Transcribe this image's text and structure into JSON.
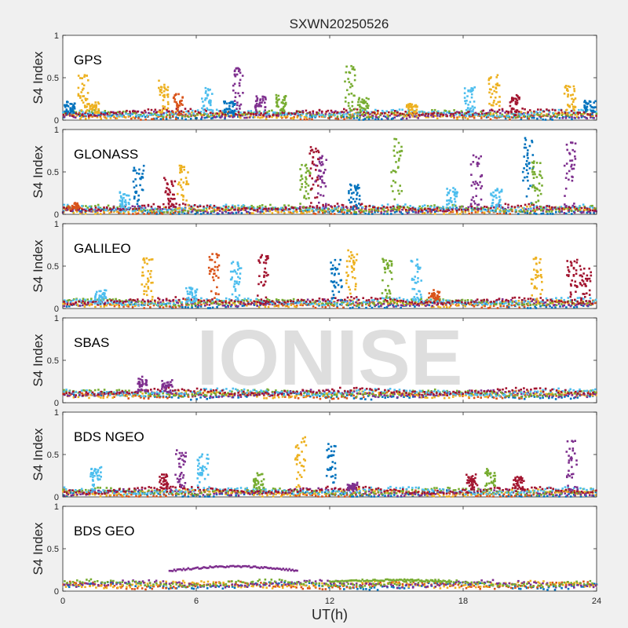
{
  "chart_data": {
    "type": "scatter",
    "title": "SXWN20250526",
    "xlabel": "UT(h)",
    "ylabel": "S4 Index",
    "xlim": [
      0,
      24
    ],
    "ylim": [
      0,
      1
    ],
    "xticks": [
      "0",
      "6",
      "12",
      "18",
      "24"
    ],
    "yticks": [
      "0",
      "0.5",
      "1"
    ],
    "watermark": "IONISE",
    "series_colors": [
      "#0072BD",
      "#D95319",
      "#EDB120",
      "#7E2F8E",
      "#77AC30",
      "#4DBEEE",
      "#A2142F"
    ],
    "panels": [
      {
        "name": "GPS",
        "baseline": 0.07,
        "clusters": [
          {
            "x": 0.3,
            "y": 0.2,
            "color": "#0072BD"
          },
          {
            "x": 0.9,
            "y": 0.55,
            "color": "#EDB120"
          },
          {
            "x": 1.4,
            "y": 0.2,
            "color": "#EDB120"
          },
          {
            "x": 4.5,
            "y": 0.45,
            "color": "#EDB120"
          },
          {
            "x": 5.2,
            "y": 0.3,
            "color": "#D95319"
          },
          {
            "x": 6.5,
            "y": 0.37,
            "color": "#4DBEEE"
          },
          {
            "x": 7.5,
            "y": 0.22,
            "color": "#0072BD"
          },
          {
            "x": 7.9,
            "y": 0.64,
            "color": "#7E2F8E"
          },
          {
            "x": 8.9,
            "y": 0.28,
            "color": "#7E2F8E"
          },
          {
            "x": 9.8,
            "y": 0.28,
            "color": "#77AC30"
          },
          {
            "x": 12.9,
            "y": 0.65,
            "color": "#77AC30"
          },
          {
            "x": 13.5,
            "y": 0.25,
            "color": "#77AC30"
          },
          {
            "x": 15.7,
            "y": 0.2,
            "color": "#EDB120"
          },
          {
            "x": 18.3,
            "y": 0.4,
            "color": "#4DBEEE"
          },
          {
            "x": 19.4,
            "y": 0.54,
            "color": "#EDB120"
          },
          {
            "x": 20.3,
            "y": 0.28,
            "color": "#A2142F"
          },
          {
            "x": 22.8,
            "y": 0.4,
            "color": "#EDB120"
          },
          {
            "x": 23.7,
            "y": 0.22,
            "color": "#0072BD"
          }
        ]
      },
      {
        "name": "GLONASS",
        "baseline": 0.06,
        "clusters": [
          {
            "x": 0.5,
            "y": 0.12,
            "color": "#D95319"
          },
          {
            "x": 2.8,
            "y": 0.25,
            "color": "#4DBEEE"
          },
          {
            "x": 3.4,
            "y": 0.6,
            "color": "#0072BD"
          },
          {
            "x": 4.8,
            "y": 0.42,
            "color": "#A2142F"
          },
          {
            "x": 5.4,
            "y": 0.6,
            "color": "#EDB120"
          },
          {
            "x": 10.9,
            "y": 0.62,
            "color": "#77AC30"
          },
          {
            "x": 11.3,
            "y": 0.8,
            "color": "#A2142F"
          },
          {
            "x": 11.6,
            "y": 0.7,
            "color": "#7E2F8E"
          },
          {
            "x": 13.1,
            "y": 0.35,
            "color": "#0072BD"
          },
          {
            "x": 15.0,
            "y": 0.88,
            "color": "#77AC30"
          },
          {
            "x": 17.5,
            "y": 0.3,
            "color": "#4DBEEE"
          },
          {
            "x": 18.6,
            "y": 0.73,
            "color": "#7E2F8E"
          },
          {
            "x": 19.5,
            "y": 0.3,
            "color": "#4DBEEE"
          },
          {
            "x": 20.9,
            "y": 0.9,
            "color": "#0072BD"
          },
          {
            "x": 21.3,
            "y": 0.63,
            "color": "#77AC30"
          },
          {
            "x": 22.8,
            "y": 0.85,
            "color": "#7E2F8E"
          }
        ]
      },
      {
        "name": "GALILEO",
        "baseline": 0.07,
        "clusters": [
          {
            "x": 1.7,
            "y": 0.2,
            "color": "#4DBEEE"
          },
          {
            "x": 3.8,
            "y": 0.6,
            "color": "#EDB120"
          },
          {
            "x": 5.8,
            "y": 0.25,
            "color": "#4DBEEE"
          },
          {
            "x": 6.8,
            "y": 0.65,
            "color": "#D95319"
          },
          {
            "x": 7.8,
            "y": 0.6,
            "color": "#4DBEEE"
          },
          {
            "x": 9.0,
            "y": 0.65,
            "color": "#A2142F"
          },
          {
            "x": 12.3,
            "y": 0.6,
            "color": "#0072BD"
          },
          {
            "x": 13.0,
            "y": 0.7,
            "color": "#EDB120"
          },
          {
            "x": 14.6,
            "y": 0.6,
            "color": "#77AC30"
          },
          {
            "x": 15.9,
            "y": 0.6,
            "color": "#4DBEEE"
          },
          {
            "x": 16.7,
            "y": 0.2,
            "color": "#D95319"
          },
          {
            "x": 21.3,
            "y": 0.62,
            "color": "#EDB120"
          },
          {
            "x": 22.9,
            "y": 0.6,
            "color": "#A2142F"
          },
          {
            "x": 23.5,
            "y": 0.5,
            "color": "#A2142F"
          }
        ]
      },
      {
        "name": "SBAS",
        "baseline": 0.11,
        "clusters": [
          {
            "x": 3.6,
            "y": 0.3,
            "color": "#7E2F8E"
          },
          {
            "x": 4.7,
            "y": 0.25,
            "color": "#7E2F8E"
          }
        ]
      },
      {
        "name": "BDS NGEO",
        "baseline": 0.06,
        "clusters": [
          {
            "x": 1.5,
            "y": 0.35,
            "color": "#4DBEEE"
          },
          {
            "x": 4.6,
            "y": 0.28,
            "color": "#A2142F"
          },
          {
            "x": 5.3,
            "y": 0.55,
            "color": "#7E2F8E"
          },
          {
            "x": 6.3,
            "y": 0.5,
            "color": "#4DBEEE"
          },
          {
            "x": 8.8,
            "y": 0.28,
            "color": "#77AC30"
          },
          {
            "x": 10.7,
            "y": 0.7,
            "color": "#EDB120"
          },
          {
            "x": 12.1,
            "y": 0.65,
            "color": "#0072BD"
          },
          {
            "x": 13.0,
            "y": 0.15,
            "color": "#7E2F8E"
          },
          {
            "x": 18.4,
            "y": 0.25,
            "color": "#A2142F"
          },
          {
            "x": 19.2,
            "y": 0.32,
            "color": "#77AC30"
          },
          {
            "x": 20.5,
            "y": 0.22,
            "color": "#A2142F"
          },
          {
            "x": 22.9,
            "y": 0.68,
            "color": "#7E2F8E"
          }
        ]
      },
      {
        "name": "BDS GEO",
        "baseline": 0.08,
        "bands": [
          {
            "x_start": 4.8,
            "x_end": 10.6,
            "y": 0.24,
            "amp": 0.05,
            "color": "#7E2F8E"
          },
          {
            "x_start": 12.0,
            "x_end": 17.5,
            "y": 0.11,
            "amp": 0.02,
            "color": "#77AC30"
          }
        ]
      }
    ]
  }
}
